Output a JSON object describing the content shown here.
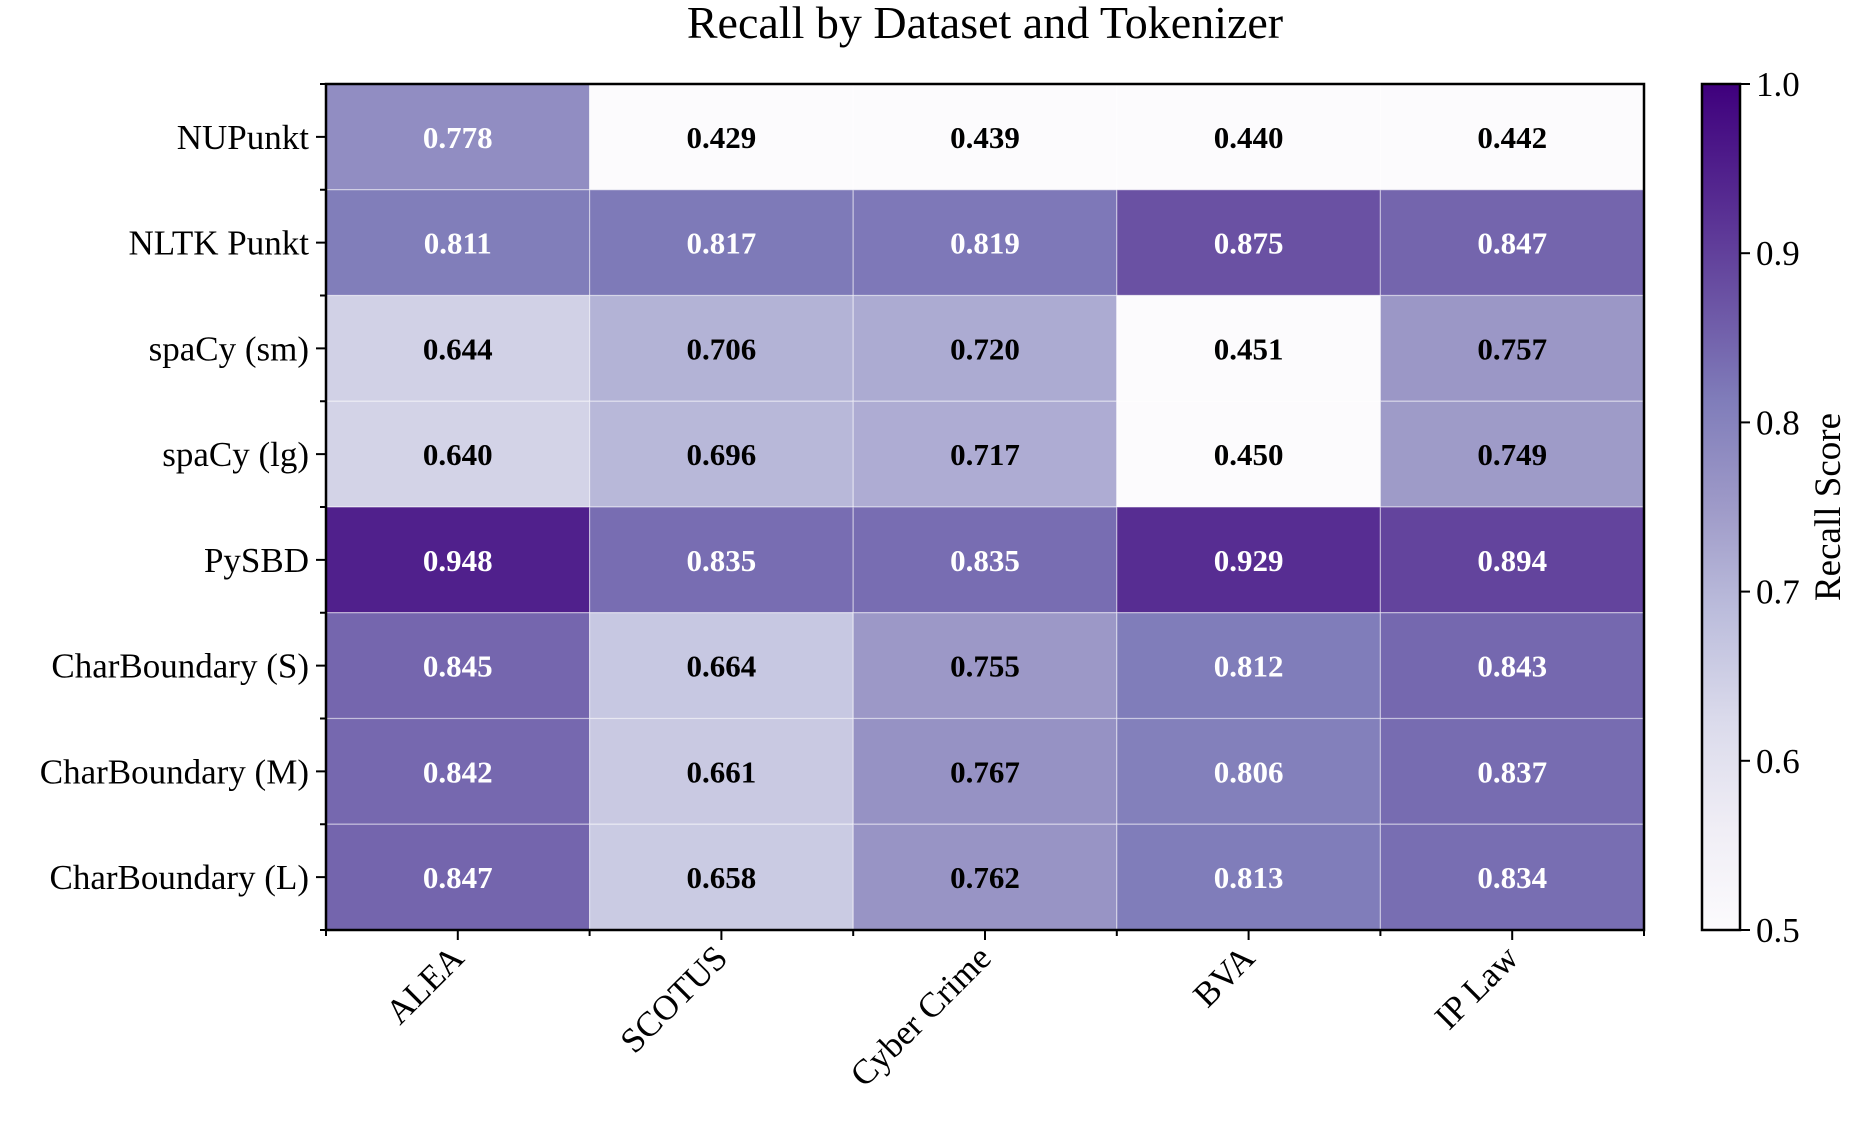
{
  "chart_data": {
    "type": "heatmap",
    "title": "Recall by Dataset and Tokenizer",
    "columns": [
      "ALEA",
      "SCOTUS",
      "Cyber Crime",
      "BVA",
      "IP Law"
    ],
    "rows": [
      "NUPunkt",
      "NLTK Punkt",
      "spaCy (sm)",
      "spaCy (lg)",
      "PySBD",
      "CharBoundary (S)",
      "CharBoundary (M)",
      "CharBoundary (L)"
    ],
    "values": [
      [
        0.778,
        0.429,
        0.439,
        0.44,
        0.442
      ],
      [
        0.811,
        0.817,
        0.819,
        0.875,
        0.847
      ],
      [
        0.644,
        0.706,
        0.72,
        0.451,
        0.757
      ],
      [
        0.64,
        0.696,
        0.717,
        0.45,
        0.749
      ],
      [
        0.948,
        0.835,
        0.835,
        0.929,
        0.894
      ],
      [
        0.845,
        0.664,
        0.755,
        0.812,
        0.843
      ],
      [
        0.842,
        0.661,
        0.767,
        0.806,
        0.837
      ],
      [
        0.847,
        0.658,
        0.762,
        0.813,
        0.834
      ]
    ],
    "value_labels": [
      [
        "0.778",
        "0.429",
        "0.439",
        "0.440",
        "0.442"
      ],
      [
        "0.811",
        "0.817",
        "0.819",
        "0.875",
        "0.847"
      ],
      [
        "0.644",
        "0.706",
        "0.720",
        "0.451",
        "0.757"
      ],
      [
        "0.640",
        "0.696",
        "0.717",
        "0.450",
        "0.749"
      ],
      [
        "0.948",
        "0.835",
        "0.835",
        "0.929",
        "0.894"
      ],
      [
        "0.845",
        "0.664",
        "0.755",
        "0.812",
        "0.843"
      ],
      [
        "0.842",
        "0.661",
        "0.767",
        "0.806",
        "0.837"
      ],
      [
        "0.847",
        "0.658",
        "0.762",
        "0.813",
        "0.834"
      ]
    ],
    "colorbar": {
      "label": "Recall Score",
      "range": [
        0.5,
        1.0
      ],
      "ticks": [
        "0.5",
        "0.6",
        "0.7",
        "0.8",
        "0.9",
        "1.0"
      ],
      "colormap": "Purples"
    },
    "colors": {
      "low": "#fcfbfd",
      "high": "#3f007d",
      "grid": "#ffffff",
      "dark_text": "#000000",
      "light_text": "#ffffff"
    }
  }
}
